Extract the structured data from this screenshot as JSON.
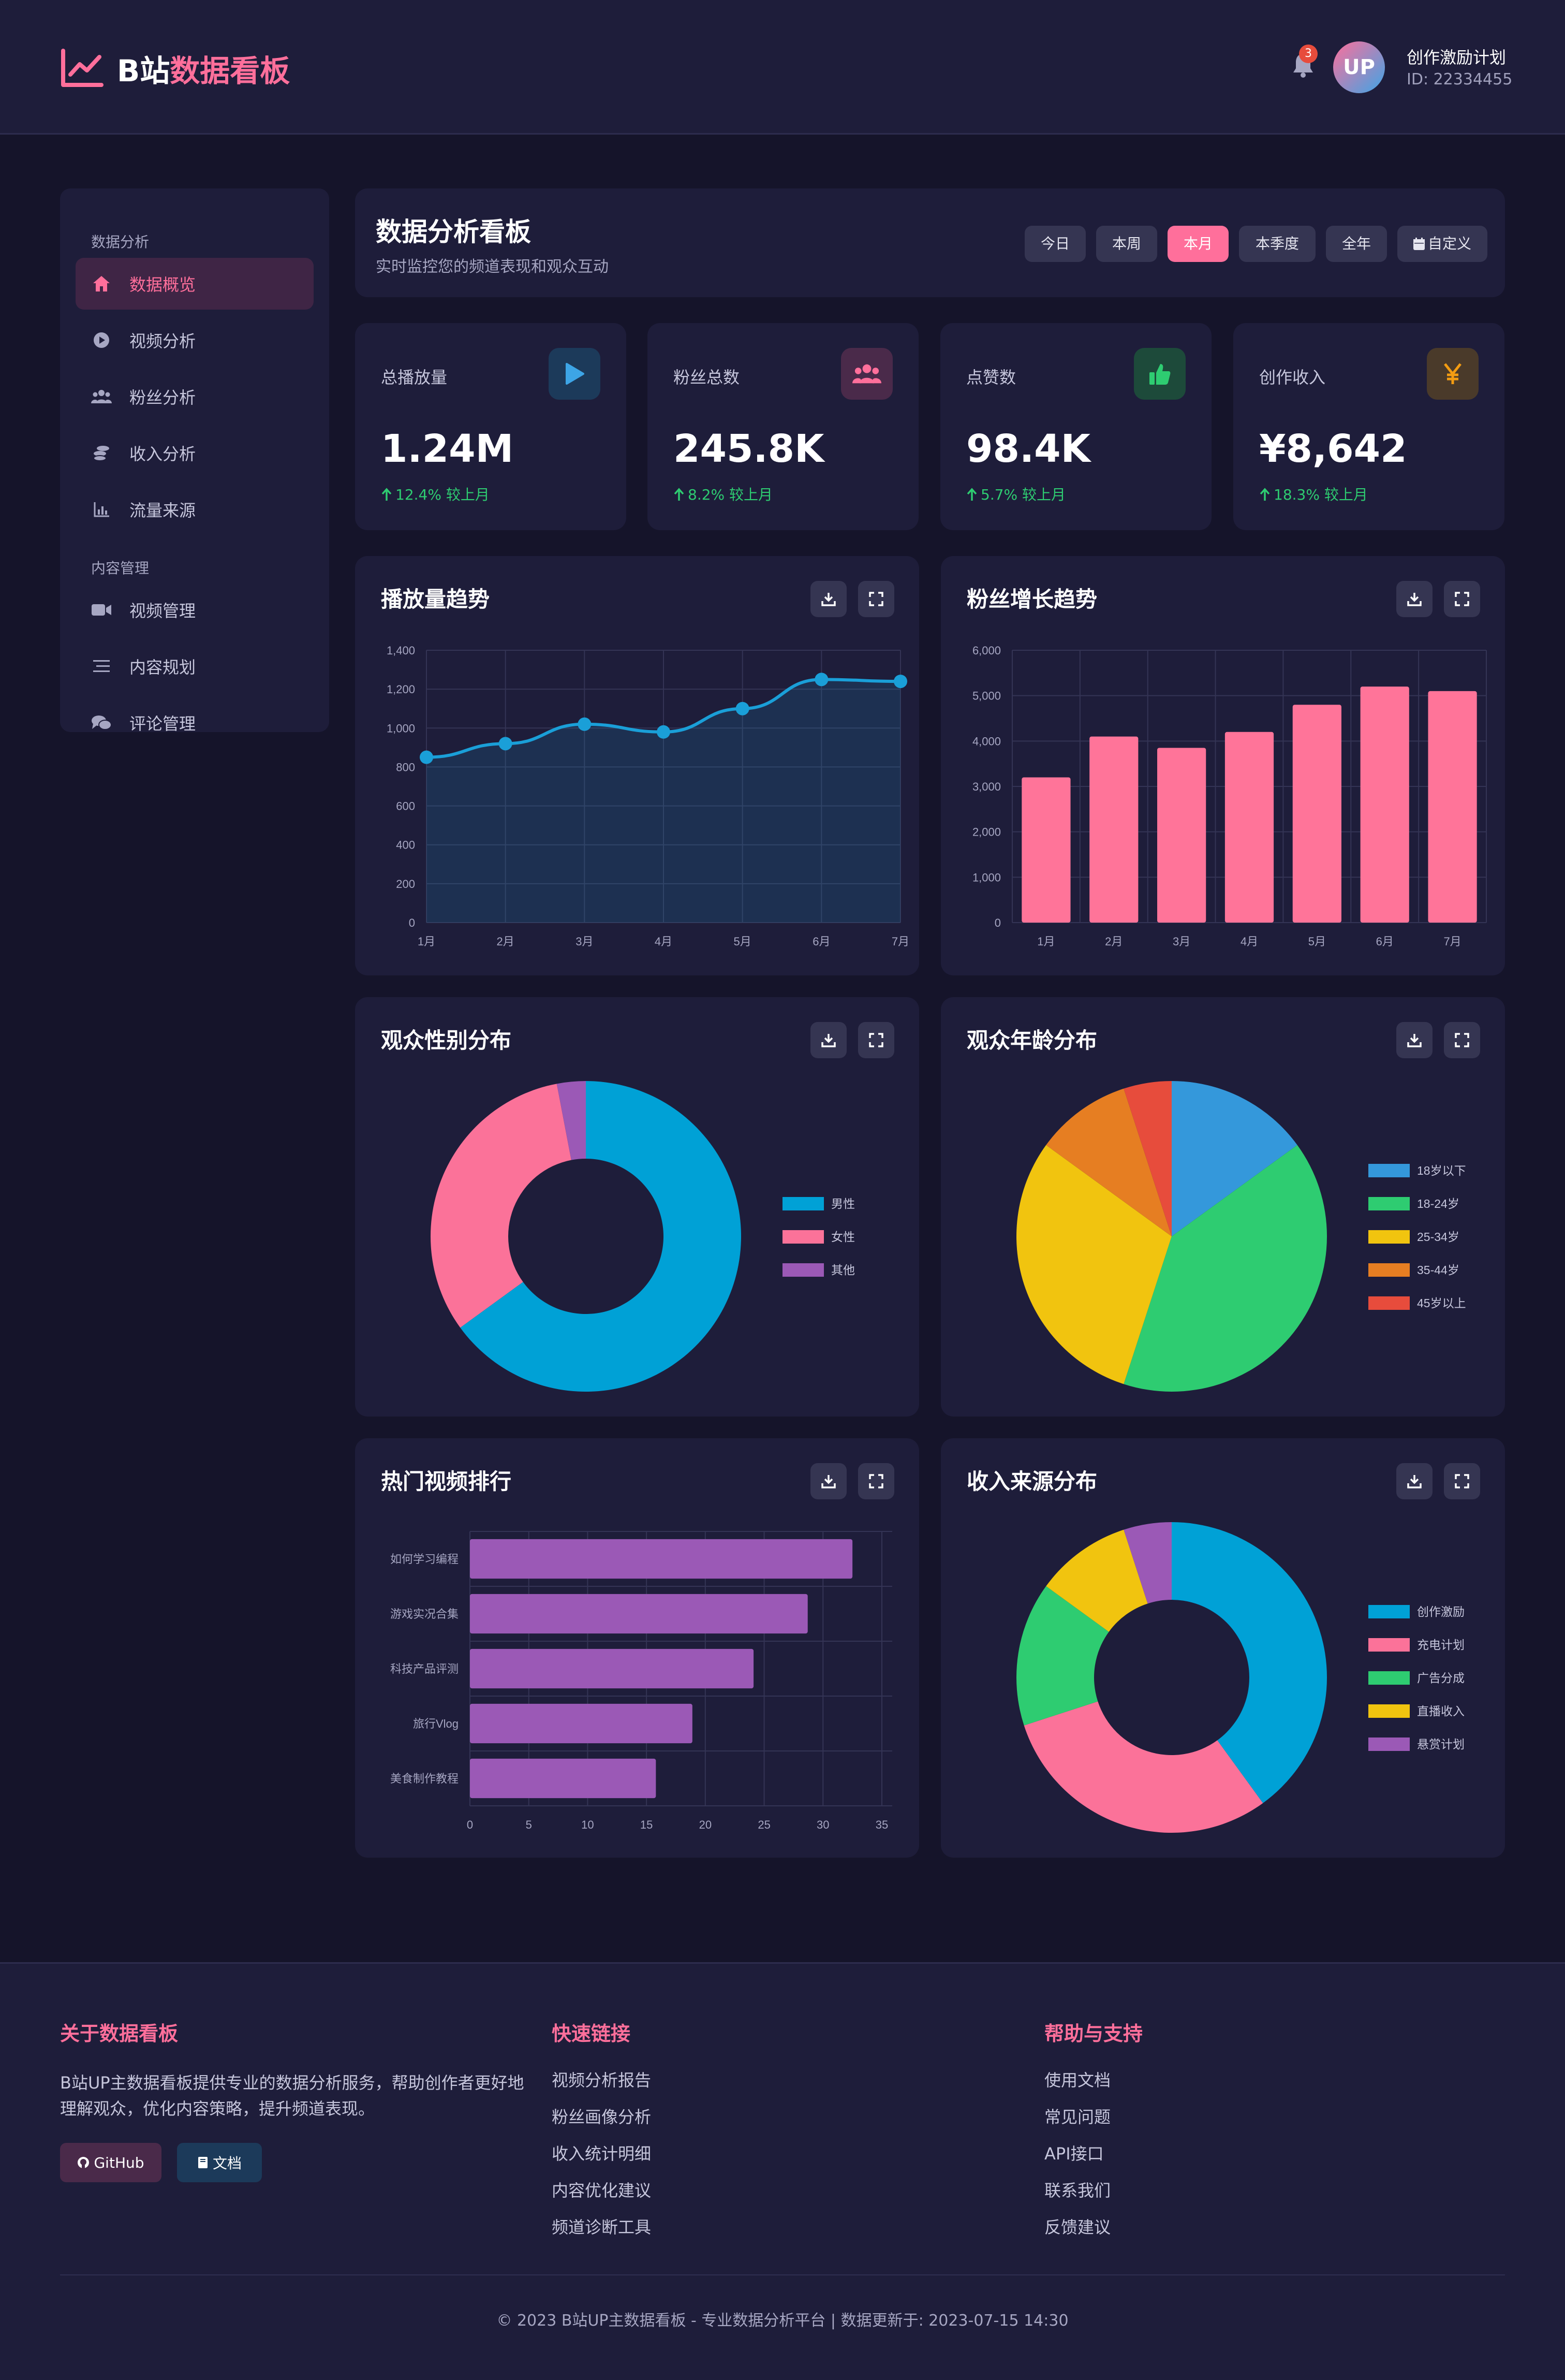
{
  "header": {
    "logo_prefix": "B站",
    "logo_highlight": "数据看板",
    "notification_count": "3",
    "avatar_text": "UP",
    "user_name": "创作激励计划",
    "user_id": "ID: 22334455"
  },
  "sidebar": {
    "sections": [
      {
        "title": "数据分析",
        "items": [
          {
            "label": "数据概览",
            "icon": "home-icon",
            "active": true
          },
          {
            "label": "视频分析",
            "icon": "play-circle-icon"
          },
          {
            "label": "粉丝分析",
            "icon": "users-icon"
          },
          {
            "label": "收入分析",
            "icon": "coins-icon"
          },
          {
            "label": "流量来源",
            "icon": "chart-line-icon"
          }
        ]
      },
      {
        "title": "内容管理",
        "items": [
          {
            "label": "视频管理",
            "icon": "video-icon"
          },
          {
            "label": "内容规划",
            "icon": "list-icon"
          },
          {
            "label": "评论管理",
            "icon": "comments-icon"
          }
        ]
      }
    ]
  },
  "dashboard": {
    "title": "数据分析看板",
    "subtitle": "实时监控您的频道表现和观众互动",
    "ranges": [
      "今日",
      "本周",
      "本月",
      "本季度",
      "全年",
      "自定义"
    ],
    "active_range": "本月"
  },
  "stats": [
    {
      "label": "总播放量",
      "value": "1.24M",
      "change": "12.4% 较上月",
      "icon": "play-icon",
      "color": "#3da5e6"
    },
    {
      "label": "粉丝总数",
      "value": "245.8K",
      "change": "8.2% 较上月",
      "icon": "users-icon",
      "color": "#ff6f9b"
    },
    {
      "label": "点赞数",
      "value": "98.4K",
      "change": "5.7% 较上月",
      "icon": "thumbs-up-icon",
      "color": "#2ecc71"
    },
    {
      "label": "创作收入",
      "value": "¥8,642",
      "change": "18.3% 较上月",
      "icon": "yen-icon",
      "color": "#f39c12"
    }
  ],
  "chart_data": [
    {
      "type": "line",
      "title": "播放量趋势",
      "categories": [
        "1月",
        "2月",
        "3月",
        "4月",
        "5月",
        "6月",
        "7月"
      ],
      "values": [
        850,
        920,
        1020,
        980,
        1100,
        1250,
        1240
      ],
      "ylim": [
        0,
        1400
      ],
      "yticks": [
        "0",
        "200",
        "400",
        "600",
        "800",
        "1,000",
        "1,200",
        "1,400"
      ],
      "color": "#1a9fd8",
      "grid": true
    },
    {
      "type": "bar",
      "title": "粉丝增长趋势",
      "categories": [
        "1月",
        "2月",
        "3月",
        "4月",
        "5月",
        "6月",
        "7月"
      ],
      "values": [
        3200,
        4100,
        3850,
        4200,
        4800,
        5200,
        5100
      ],
      "ylim": [
        0,
        6000
      ],
      "yticks": [
        "0",
        "1,000",
        "2,000",
        "3,000",
        "4,000",
        "5,000",
        "6,000"
      ],
      "color": "#ff7499",
      "grid": true
    },
    {
      "type": "pie",
      "title": "观众性别分布",
      "donut": true,
      "labels": [
        "男性",
        "女性",
        "其他"
      ],
      "values": [
        65,
        32,
        3
      ],
      "colors": [
        "#00a1d6",
        "#fb7299",
        "#9b59b6"
      ],
      "legend": "right"
    },
    {
      "type": "pie",
      "title": "观众年龄分布",
      "donut": false,
      "labels": [
        "18岁以下",
        "18-24岁",
        "25-34岁",
        "35-44岁",
        "45岁以上"
      ],
      "values": [
        15,
        40,
        30,
        10,
        5
      ],
      "colors": [
        "#3498db",
        "#2ecc71",
        "#f1c40f",
        "#e67e22",
        "#e74c3c"
      ],
      "legend": "right"
    },
    {
      "type": "bar",
      "orientation": "horizontal",
      "title": "热门视频排行",
      "categories": [
        "如何学习编程",
        "游戏实况合集",
        "科技产品评测",
        "旅行Vlog",
        "美食制作教程"
      ],
      "values": [
        32.5,
        28.7,
        24.1,
        18.9,
        15.8
      ],
      "xlim": [
        0,
        35
      ],
      "xticks": [
        "0",
        "5",
        "10",
        "15",
        "20",
        "25",
        "30",
        "35"
      ],
      "color": "#9b59b6",
      "grid": true
    },
    {
      "type": "pie",
      "title": "收入来源分布",
      "donut": true,
      "labels": [
        "创作激励",
        "充电计划",
        "广告分成",
        "直播收入",
        "悬赏计划"
      ],
      "values": [
        40,
        30,
        15,
        10,
        5
      ],
      "colors": [
        "#00a1d6",
        "#fb7299",
        "#2ecc71",
        "#f1c40f",
        "#9b59b6"
      ],
      "legend": "right"
    }
  ],
  "footer": {
    "about_title": "关于数据看板",
    "about_text": "B站UP主数据看板提供专业的数据分析服务，帮助创作者更好地理解观众，优化内容策略，提升频道表现。",
    "github_label": "GitHub",
    "docs_label": "文档",
    "links_title": "快速链接",
    "links": [
      "视频分析报告",
      "粉丝画像分析",
      "收入统计明细",
      "内容优化建议",
      "频道诊断工具"
    ],
    "help_title": "帮助与支持",
    "help_links": [
      "使用文档",
      "常见问题",
      "API接口",
      "联系我们",
      "反馈建议"
    ],
    "copyright": "© 2023 B站UP主数据看板 - 专业数据分析平台 | 数据更新于: 2023-07-15 14:30"
  }
}
